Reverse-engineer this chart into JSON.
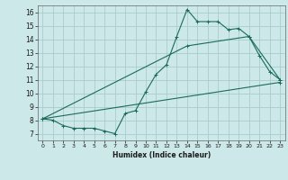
{
  "title": "",
  "xlabel": "Humidex (Indice chaleur)",
  "bg_color": "#cce8e8",
  "grid_color": "#aacccc",
  "line_color": "#1a6b5a",
  "xlim": [
    -0.5,
    23.5
  ],
  "ylim": [
    6.5,
    16.5
  ],
  "xticks": [
    0,
    1,
    2,
    3,
    4,
    5,
    6,
    7,
    8,
    9,
    10,
    11,
    12,
    13,
    14,
    15,
    16,
    17,
    18,
    19,
    20,
    21,
    22,
    23
  ],
  "yticks": [
    7,
    8,
    9,
    10,
    11,
    12,
    13,
    14,
    15,
    16
  ],
  "line1_x": [
    0,
    1,
    2,
    3,
    4,
    5,
    6,
    7,
    8,
    9,
    10,
    11,
    12,
    13,
    14,
    15,
    16,
    17,
    18,
    19,
    20,
    21,
    22,
    23
  ],
  "line1_y": [
    8.1,
    8.0,
    7.6,
    7.4,
    7.4,
    7.4,
    7.2,
    7.0,
    8.5,
    8.7,
    10.1,
    11.4,
    12.1,
    14.2,
    16.2,
    15.3,
    15.3,
    15.3,
    14.7,
    14.8,
    14.2,
    12.8,
    11.6,
    11.0
  ],
  "line2_x": [
    0,
    14,
    20,
    23
  ],
  "line2_y": [
    8.1,
    13.5,
    14.2,
    11.0
  ],
  "line3_x": [
    0,
    23
  ],
  "line3_y": [
    8.1,
    10.8
  ]
}
